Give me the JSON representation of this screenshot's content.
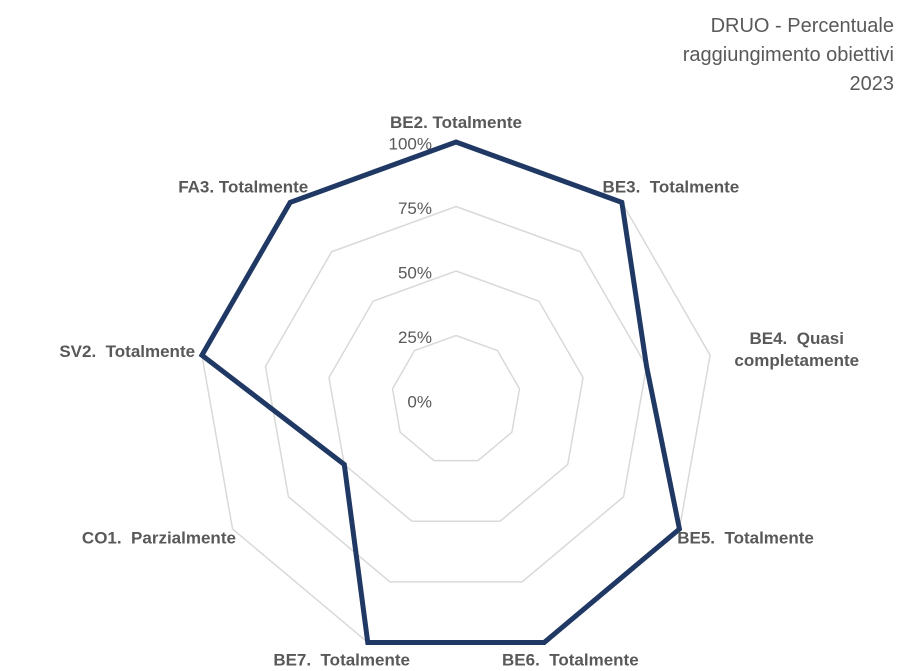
{
  "chart_data": {
    "type": "radar",
    "title": "DRUO - Percentuale raggiungimento obiettivi 2023",
    "categories": [
      "BE2. Totalmente",
      "BE3.  Totalmente",
      "BE4.  Quasi completamente",
      "BE5.  Totalmente",
      "BE6.  Totalmente",
      "BE7.  Totalmente",
      "CO1.  Parzialmente",
      "SV2.  Totalmente",
      "FA3. Totalmente"
    ],
    "series": [
      {
        "color": "#1f3864",
        "values": [
          100,
          100,
          75,
          100,
          100,
          100,
          50,
          100,
          100
        ]
      }
    ],
    "ylim": [
      0,
      100
    ],
    "yticks": [
      {
        "value": 0,
        "label": "0%"
      },
      {
        "value": 25,
        "label": "25%"
      },
      {
        "value": 50,
        "label": "50%"
      },
      {
        "value": 75,
        "label": "75%"
      },
      {
        "value": 100,
        "label": "100%"
      }
    ],
    "grid": true
  }
}
